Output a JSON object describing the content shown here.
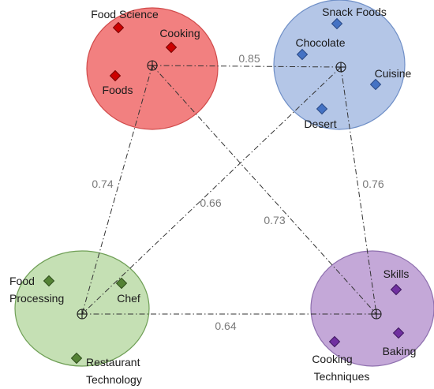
{
  "clusters": [
    {
      "id": "red",
      "fill": "#f28080",
      "stroke": "#d04a4a",
      "marker": "#cc0000",
      "marker_stroke": "#7a0000",
      "terms": [
        {
          "label": "Food Science"
        },
        {
          "label": "Cooking"
        },
        {
          "label": "Foods"
        }
      ]
    },
    {
      "id": "blue",
      "fill": "#b4c6e7",
      "stroke": "#6f8fc7",
      "marker": "#4472c4",
      "marker_stroke": "#2a4a86",
      "terms": [
        {
          "label": "Snack Foods"
        },
        {
          "label": "Chocolate"
        },
        {
          "label": "Cuisine"
        },
        {
          "label": "Desert"
        }
      ]
    },
    {
      "id": "green",
      "fill": "#c5e0b4",
      "stroke": "#6f9f56",
      "marker": "#548235",
      "marker_stroke": "#2f4e1c",
      "terms": [
        {
          "label": "Food Processing",
          "lines": [
            "Food",
            "Processing"
          ]
        },
        {
          "label": "Chef"
        },
        {
          "label": "Restaurant Technology",
          "lines": [
            "Restaurant",
            "Technology"
          ]
        }
      ]
    },
    {
      "id": "purple",
      "fill": "#c4a8d8",
      "stroke": "#8e6fae",
      "marker": "#7030a0",
      "marker_stroke": "#3f1860",
      "terms": [
        {
          "label": "Skills"
        },
        {
          "label": "Cooking Techniques",
          "lines": [
            "Cooking",
            "Techniques"
          ]
        },
        {
          "label": "Baking"
        }
      ]
    }
  ],
  "edges": [
    {
      "from": "red",
      "to": "blue",
      "label": "0.85"
    },
    {
      "from": "red",
      "to": "green",
      "label": "0.74"
    },
    {
      "from": "red",
      "to": "purple",
      "label": "0.73"
    },
    {
      "from": "blue",
      "to": "green",
      "label": "0.66"
    },
    {
      "from": "blue",
      "to": "purple",
      "label": "0.76"
    },
    {
      "from": "green",
      "to": "purple",
      "label": "0.64"
    }
  ]
}
